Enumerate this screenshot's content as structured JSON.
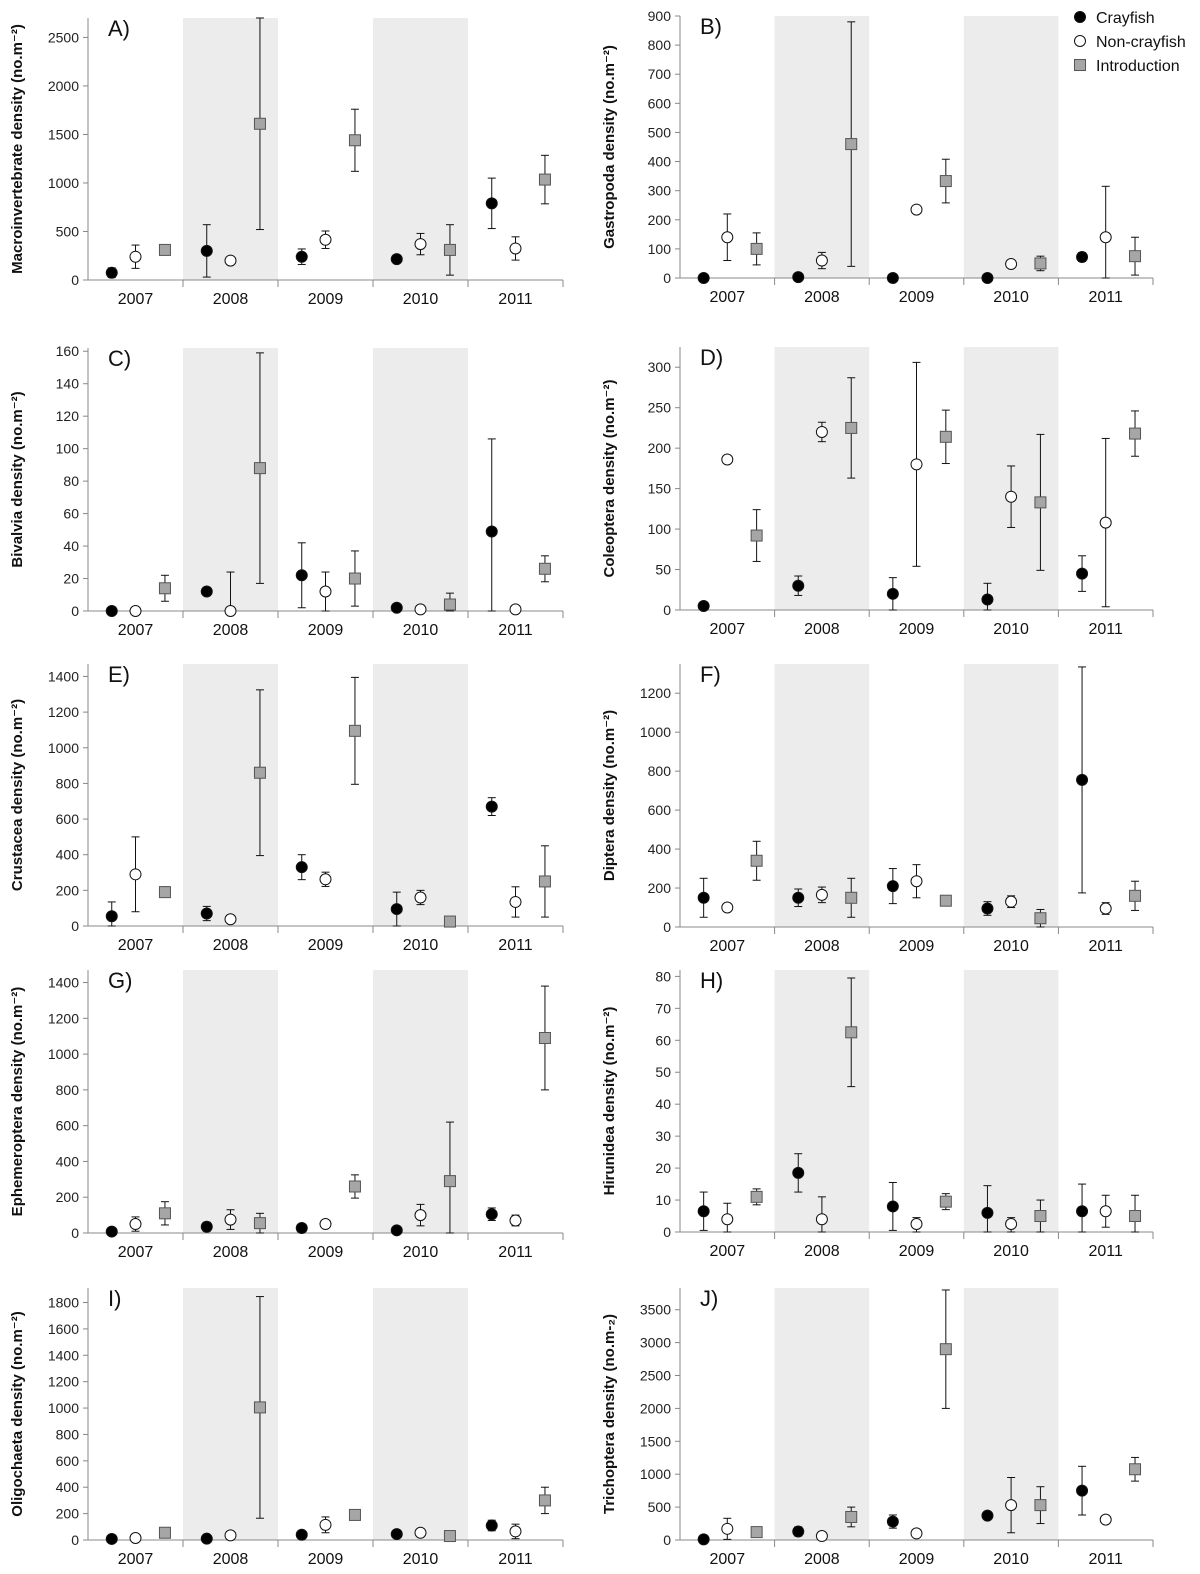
{
  "legend": {
    "position": "top-right",
    "items": [
      {
        "name": "Crayfish",
        "marker": "circle",
        "fill": "#000000"
      },
      {
        "name": "Non-crayfish",
        "marker": "circle",
        "fill": "#ffffff"
      },
      {
        "name": "Introduction",
        "marker": "square",
        "fill": "#a6a6a6"
      }
    ]
  },
  "colors": {
    "crayfish": "#000000",
    "noncrayfish": "#ffffff",
    "introduction": "#a6a6a6",
    "shade": "#ececec",
    "axis": "#888888"
  },
  "chart_data": [
    {
      "type": "scatter",
      "panel": "A)",
      "ylabel": "Macroinvertebrate density (no.m⁻²)",
      "categories": [
        "2007",
        "2008",
        "2009",
        "2010",
        "2011"
      ],
      "shaded": [
        "2008",
        "2010"
      ],
      "ylim": [
        0,
        2700
      ],
      "yticks": [
        0,
        500,
        1000,
        1500,
        2000,
        2500
      ],
      "series": [
        {
          "name": "Crayfish",
          "values": [
            75,
            300,
            240,
            215,
            790
          ],
          "err_hi": [
            50,
            270,
            80,
            20,
            260
          ],
          "err_lo": [
            50,
            270,
            80,
            20,
            260
          ]
        },
        {
          "name": "Non-crayfish",
          "values": [
            240,
            200,
            415,
            370,
            325
          ],
          "err_hi": [
            120,
            0,
            90,
            110,
            120
          ],
          "err_lo": [
            120,
            0,
            90,
            110,
            120
          ]
        },
        {
          "name": "Introduction",
          "values": [
            310,
            1610,
            1440,
            310,
            1035
          ],
          "err_hi": [
            0,
            1090,
            320,
            260,
            250
          ],
          "err_lo": [
            0,
            1090,
            320,
            260,
            250
          ]
        }
      ]
    },
    {
      "type": "scatter",
      "panel": "B)",
      "ylabel": "Gastropoda density (no.m⁻²)",
      "categories": [
        "2007",
        "2008",
        "2009",
        "2010",
        "2011"
      ],
      "shaded": [
        "2008",
        "2010"
      ],
      "ylim": [
        0,
        900
      ],
      "yticks": [
        0,
        100,
        200,
        300,
        400,
        500,
        600,
        700,
        800,
        900
      ],
      "series": [
        {
          "name": "Crayfish",
          "values": [
            0,
            3,
            0,
            0,
            72
          ],
          "err_hi": [
            0,
            0,
            0,
            0,
            15
          ],
          "err_lo": [
            0,
            0,
            0,
            0,
            15
          ]
        },
        {
          "name": "Non-crayfish",
          "values": [
            140,
            60,
            235,
            48,
            140
          ],
          "err_hi": [
            80,
            28,
            0,
            10,
            175
          ],
          "err_lo": [
            80,
            28,
            0,
            10,
            140
          ]
        },
        {
          "name": "Introduction",
          "values": [
            100,
            460,
            333,
            50,
            75
          ],
          "err_hi": [
            55,
            420,
            75,
            25,
            65
          ],
          "err_lo": [
            55,
            420,
            75,
            25,
            65
          ]
        }
      ]
    },
    {
      "type": "scatter",
      "panel": "C)",
      "ylabel": "Bivalvia density (no.m⁻²)",
      "categories": [
        "2007",
        "2008",
        "2009",
        "2010",
        "2011"
      ],
      "shaded": [
        "2008",
        "2010"
      ],
      "ylim": [
        0,
        162
      ],
      "yticks": [
        0,
        20,
        40,
        60,
        80,
        100,
        120,
        140,
        160
      ],
      "series": [
        {
          "name": "Crayfish",
          "values": [
            0,
            12,
            22,
            2,
            49
          ],
          "err_hi": [
            0,
            0,
            20,
            0,
            57
          ],
          "err_lo": [
            0,
            0,
            20,
            0,
            49
          ]
        },
        {
          "name": "Non-crayfish",
          "values": [
            0,
            0,
            12,
            1,
            1
          ],
          "err_hi": [
            0,
            24,
            12,
            0,
            0
          ],
          "err_lo": [
            0,
            0,
            12,
            0,
            0
          ]
        },
        {
          "name": "Introduction",
          "values": [
            14,
            88,
            20,
            4,
            26
          ],
          "err_hi": [
            8,
            71,
            17,
            7,
            8
          ],
          "err_lo": [
            8,
            71,
            17,
            4,
            8
          ]
        }
      ]
    },
    {
      "type": "scatter",
      "panel": "D)",
      "ylabel": "Coleoptera density (no.m⁻²)",
      "categories": [
        "2007",
        "2008",
        "2009",
        "2010",
        "2011"
      ],
      "shaded": [
        "2008",
        "2010"
      ],
      "ylim": [
        0,
        325
      ],
      "yticks": [
        0,
        50,
        100,
        150,
        200,
        250,
        300
      ],
      "series": [
        {
          "name": "Crayfish",
          "values": [
            5,
            30,
            20,
            13,
            45
          ],
          "err_hi": [
            0,
            12,
            20,
            20,
            22
          ],
          "err_lo": [
            0,
            12,
            20,
            13,
            22
          ]
        },
        {
          "name": "Non-crayfish",
          "values": [
            186,
            220,
            180,
            140,
            108
          ],
          "err_hi": [
            0,
            12,
            126,
            38,
            104
          ],
          "err_lo": [
            0,
            12,
            126,
            38,
            104
          ]
        },
        {
          "name": "Introduction",
          "values": [
            92,
            225,
            214,
            133,
            218
          ],
          "err_hi": [
            32,
            62,
            33,
            84,
            28
          ],
          "err_lo": [
            32,
            62,
            33,
            84,
            28
          ]
        }
      ]
    },
    {
      "type": "scatter",
      "panel": "E)",
      "ylabel": "Crustacea density (no.m⁻²)",
      "categories": [
        "2007",
        "2008",
        "2009",
        "2010",
        "2011"
      ],
      "shaded": [
        "2008",
        "2010"
      ],
      "ylim": [
        0,
        1470
      ],
      "yticks": [
        0,
        200,
        400,
        600,
        800,
        1000,
        1200,
        1400
      ],
      "series": [
        {
          "name": "Crayfish",
          "values": [
            55,
            70,
            330,
            95,
            670
          ],
          "err_hi": [
            80,
            40,
            70,
            95,
            50
          ],
          "err_lo": [
            55,
            40,
            70,
            95,
            50
          ]
        },
        {
          "name": "Non-crayfish",
          "values": [
            290,
            38,
            262,
            160,
            135
          ],
          "err_hi": [
            210,
            0,
            40,
            40,
            85
          ],
          "err_lo": [
            210,
            0,
            40,
            40,
            85
          ]
        },
        {
          "name": "Introduction",
          "values": [
            190,
            860,
            1095,
            25,
            250
          ],
          "err_hi": [
            30,
            465,
            300,
            0,
            200
          ],
          "err_lo": [
            30,
            465,
            300,
            0,
            200
          ]
        }
      ]
    },
    {
      "type": "scatter",
      "panel": "F)",
      "ylabel": "Diptera density (no.m⁻²)",
      "categories": [
        "2007",
        "2008",
        "2009",
        "2010",
        "2011"
      ],
      "shaded": [
        "2008",
        "2010"
      ],
      "ylim": [
        0,
        1350
      ],
      "yticks": [
        0,
        200,
        400,
        600,
        800,
        1000,
        1200
      ],
      "series": [
        {
          "name": "Crayfish",
          "values": [
            150,
            150,
            210,
            95,
            755
          ],
          "err_hi": [
            100,
            45,
            90,
            35,
            580
          ],
          "err_lo": [
            100,
            45,
            90,
            35,
            580
          ]
        },
        {
          "name": "Non-crayfish",
          "values": [
            100,
            165,
            235,
            130,
            95
          ],
          "err_hi": [
            0,
            40,
            85,
            30,
            30
          ],
          "err_lo": [
            0,
            40,
            85,
            30,
            30
          ]
        },
        {
          "name": "Introduction",
          "values": [
            340,
            150,
            135,
            45,
            160
          ],
          "err_hi": [
            100,
            100,
            20,
            45,
            75
          ],
          "err_lo": [
            100,
            100,
            20,
            45,
            75
          ]
        }
      ]
    },
    {
      "type": "scatter",
      "panel": "G)",
      "ylabel": "Ephemeroptera density (no.m⁻²)",
      "categories": [
        "2007",
        "2008",
        "2009",
        "2010",
        "2011"
      ],
      "shaded": [
        "2008",
        "2010"
      ],
      "ylim": [
        0,
        1470
      ],
      "yticks": [
        0,
        200,
        400,
        600,
        800,
        1000,
        1200,
        1400
      ],
      "series": [
        {
          "name": "Crayfish",
          "values": [
            8,
            35,
            28,
            15,
            105
          ],
          "err_hi": [
            0,
            25,
            0,
            0,
            35
          ],
          "err_lo": [
            0,
            25,
            0,
            0,
            35
          ]
        },
        {
          "name": "Non-crayfish",
          "values": [
            50,
            75,
            50,
            100,
            70
          ],
          "err_hi": [
            40,
            55,
            0,
            60,
            30
          ],
          "err_lo": [
            40,
            55,
            0,
            60,
            30
          ]
        },
        {
          "name": "Introduction",
          "values": [
            110,
            55,
            260,
            290,
            1090
          ],
          "err_hi": [
            65,
            55,
            65,
            330,
            290
          ],
          "err_lo": [
            65,
            55,
            65,
            290,
            290
          ]
        }
      ]
    },
    {
      "type": "scatter",
      "panel": "H)",
      "ylabel": "Hirunidea density (no.m⁻²)",
      "categories": [
        "2007",
        "2008",
        "2009",
        "2010",
        "2011"
      ],
      "shaded": [
        "2008",
        "2010"
      ],
      "ylim": [
        0,
        82
      ],
      "yticks": [
        0,
        10,
        20,
        30,
        40,
        50,
        60,
        70,
        80
      ],
      "series": [
        {
          "name": "Crayfish",
          "values": [
            6.5,
            18.5,
            8,
            6,
            6.5
          ],
          "err_hi": [
            6,
            6,
            7.5,
            8.5,
            8.5
          ],
          "err_lo": [
            6,
            6,
            7.5,
            6,
            6.5
          ]
        },
        {
          "name": "Non-crayfish",
          "values": [
            4,
            4,
            2.5,
            2.5,
            6.5
          ],
          "err_hi": [
            5,
            7,
            2,
            2,
            5
          ],
          "err_lo": [
            4,
            4,
            2.5,
            2.5,
            5
          ]
        },
        {
          "name": "Introduction",
          "values": [
            11,
            62.5,
            9.5,
            5,
            5
          ],
          "err_hi": [
            2.5,
            17,
            2.5,
            5,
            6.5
          ],
          "err_lo": [
            2.5,
            17,
            2.5,
            5,
            5
          ]
        }
      ]
    },
    {
      "type": "scatter",
      "panel": "I)",
      "ylabel": "Oligochaeta density (no.m⁻²)",
      "categories": [
        "2007",
        "2008",
        "2009",
        "2010",
        "2011"
      ],
      "shaded": [
        "2008",
        "2010"
      ],
      "ylim": [
        0,
        1910
      ],
      "yticks": [
        0,
        200,
        400,
        600,
        800,
        1000,
        1200,
        1400,
        1600,
        1800
      ],
      "series": [
        {
          "name": "Crayfish",
          "values": [
            8,
            10,
            40,
            45,
            110
          ],
          "err_hi": [
            0,
            0,
            20,
            0,
            40
          ],
          "err_lo": [
            0,
            0,
            20,
            0,
            40
          ]
        },
        {
          "name": "Non-crayfish",
          "values": [
            15,
            35,
            115,
            55,
            65
          ],
          "err_hi": [
            0,
            0,
            60,
            0,
            55
          ],
          "err_lo": [
            0,
            0,
            60,
            0,
            55
          ]
        },
        {
          "name": "Introduction",
          "values": [
            55,
            1005,
            190,
            30,
            300
          ],
          "err_hi": [
            0,
            840,
            0,
            0,
            100
          ],
          "err_lo": [
            0,
            840,
            0,
            0,
            100
          ]
        }
      ]
    },
    {
      "type": "scatter",
      "panel": "J)",
      "ylabel": "Trichoptera density (no.m-₂)",
      "categories": [
        "2007",
        "2008",
        "2009",
        "2010",
        "2011"
      ],
      "shaded": [
        "2008",
        "2010"
      ],
      "ylim": [
        0,
        3830
      ],
      "yticks": [
        0,
        500,
        1000,
        1500,
        2000,
        2500,
        3000,
        3500
      ],
      "series": [
        {
          "name": "Crayfish",
          "values": [
            10,
            130,
            280,
            370,
            750
          ],
          "err_hi": [
            0,
            70,
            100,
            0,
            370
          ],
          "err_lo": [
            0,
            70,
            100,
            0,
            370
          ]
        },
        {
          "name": "Non-crayfish",
          "values": [
            170,
            60,
            100,
            530,
            310
          ],
          "err_hi": [
            160,
            0,
            0,
            420,
            0
          ],
          "err_lo": [
            160,
            0,
            0,
            420,
            0
          ]
        },
        {
          "name": "Introduction",
          "values": [
            120,
            350,
            2900,
            530,
            1075
          ],
          "err_hi": [
            0,
            150,
            900,
            280,
            180
          ],
          "err_lo": [
            0,
            150,
            900,
            280,
            180
          ]
        }
      ]
    }
  ]
}
